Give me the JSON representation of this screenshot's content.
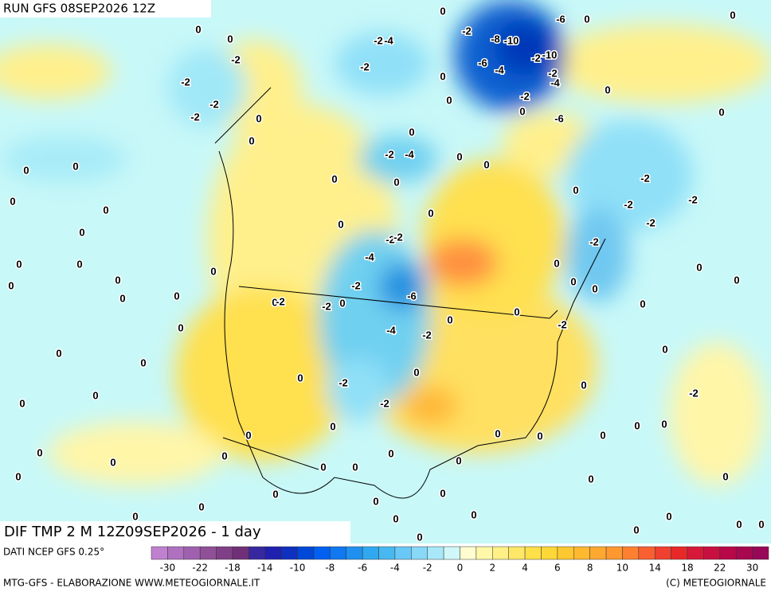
{
  "header": {
    "run": "RUN GFS 08SEP2026 12Z"
  },
  "map": {
    "title": "DIF TMP 2 M 12Z09SEP2026 - 1 day",
    "contour_labels": [
      0,
      0,
      -2,
      -2,
      -2,
      -2,
      0,
      0,
      0,
      0,
      0,
      0,
      0,
      0,
      0,
      0,
      0,
      0,
      0,
      0,
      0,
      0,
      0,
      0,
      0,
      0,
      0,
      0,
      0,
      0,
      0,
      0,
      0,
      -2,
      -2,
      0,
      -2,
      -4,
      -2,
      -6,
      -4,
      -2,
      0,
      0,
      -2,
      0,
      -2,
      0,
      0,
      0,
      0,
      0,
      0,
      0,
      0,
      0,
      0,
      0,
      0,
      0,
      0,
      0,
      0,
      -2,
      0,
      -2,
      0,
      -2,
      0,
      0,
      0,
      0,
      0,
      0,
      0,
      -2,
      -2,
      -2,
      -2,
      0,
      0,
      0,
      0,
      -2,
      -4,
      0,
      0,
      -2,
      0,
      0,
      -2,
      -2,
      -4,
      0,
      0,
      0,
      -2,
      -8,
      -10,
      -6,
      -4,
      -2,
      -10,
      -6,
      0,
      0,
      -2,
      -4,
      -2,
      0,
      -6,
      0,
      0,
      0,
      0,
      0,
      0,
      0,
      0
    ]
  },
  "legend": {
    "source": "DATI NCEP GFS 0.25°",
    "labels": [
      -30,
      -22,
      -18,
      -14,
      -10,
      -8,
      -6,
      -4,
      -2,
      0,
      2,
      4,
      6,
      8,
      10,
      14,
      18,
      22,
      30
    ]
  },
  "footer": {
    "left": "MTG-GFS - ELABORAZIONE WWW.METEOGIORNALE.IT",
    "right": "(C) METEOGIORNALE"
  }
}
